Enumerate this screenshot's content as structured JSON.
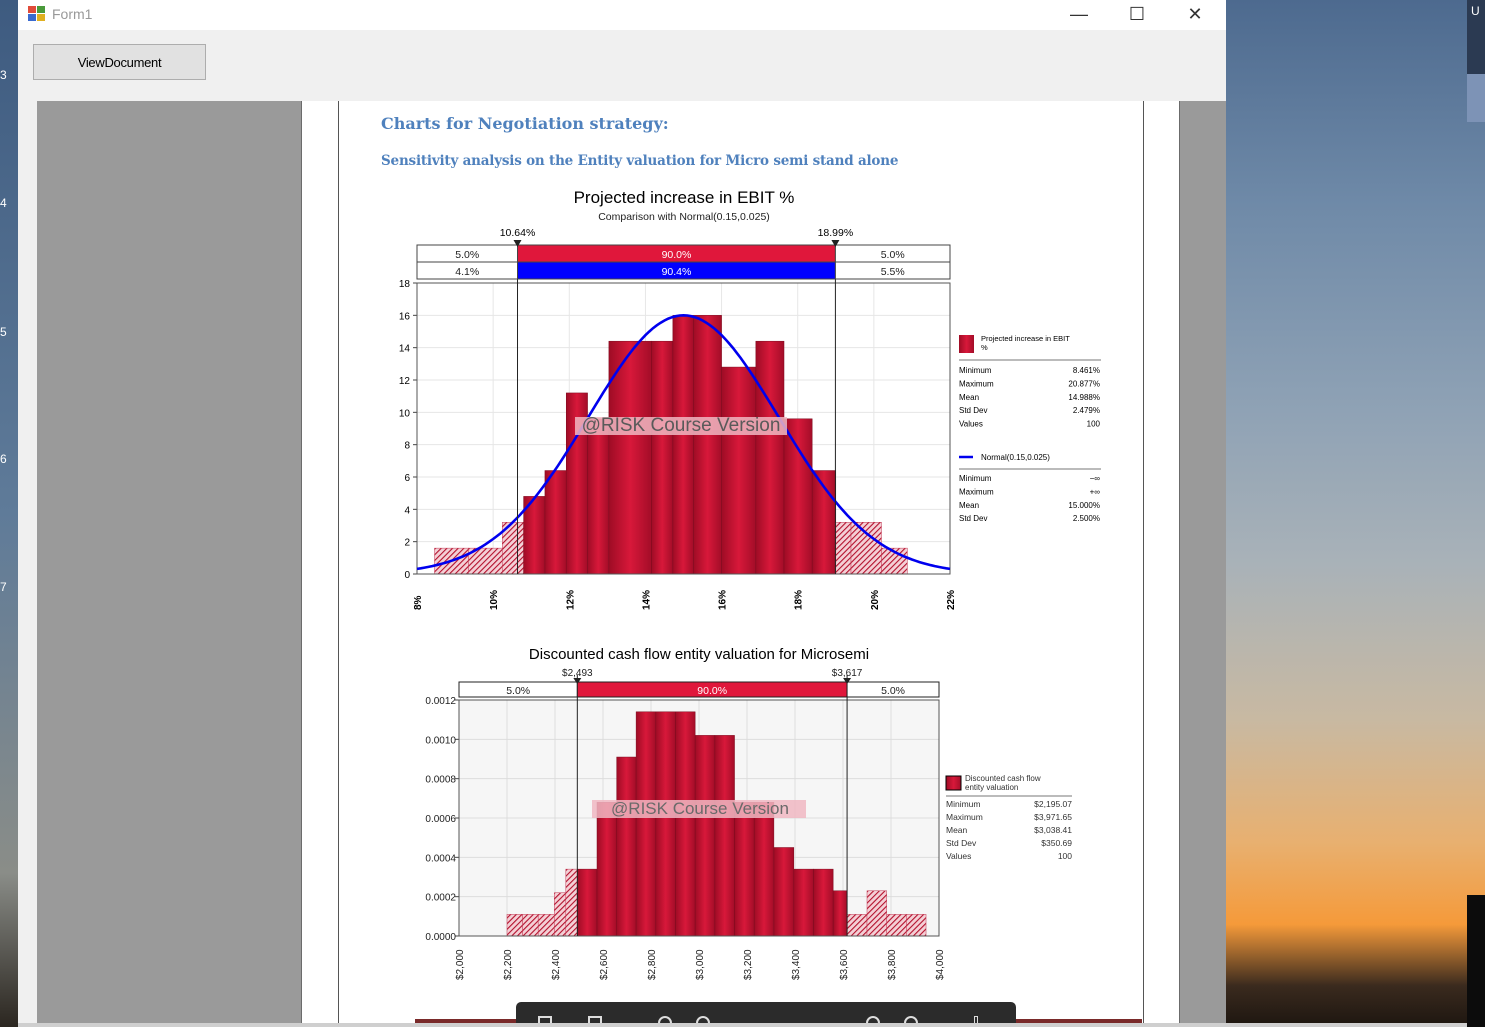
{
  "window": {
    "title": "Form1",
    "minimize_glyph": "—",
    "maximize_glyph": "☐",
    "close_glyph": "✕",
    "app_icon_colors": [
      "#e04b3a",
      "#4a9a3a",
      "#3a6ad0",
      "#e0b020"
    ]
  },
  "toolbar": {
    "view_document_label": "ViewDocument"
  },
  "desktop": {
    "left_strip_glyphs": [
      "3",
      "4",
      "5",
      "6",
      "7"
    ],
    "right_bar_glyph": "U"
  },
  "document": {
    "heading1": "Charts for Negotiation strategy:",
    "heading2": "Sensitivity analysis on the Entity valuation for Micro semi stand alone"
  },
  "chart_data": [
    {
      "type": "bar",
      "title": "Projected increase in EBIT %",
      "subtitle": "Comparison with Normal(0.15,0.025)",
      "watermark": "@RISK Course Version",
      "x_ticks": [
        "8%",
        "10%",
        "12%",
        "14%",
        "16%",
        "18%",
        "20%",
        "22%"
      ],
      "y_ticks": [
        "0",
        "2",
        "4",
        "6",
        "8",
        "10",
        "12",
        "14",
        "16",
        "18"
      ],
      "xlim": [
        8,
        22
      ],
      "ylim": [
        0,
        18
      ],
      "bin_edges": [
        8.46,
        9.35,
        10.24,
        10.8,
        11.36,
        11.92,
        12.48,
        13.04,
        14.16,
        14.72,
        15.26,
        16.0,
        16.9,
        17.64,
        18.38,
        19.0,
        19.4,
        20.2,
        20.88
      ],
      "values": [
        1.6,
        1.6,
        3.2,
        4.8,
        6.4,
        11.2,
        9.6,
        14.4,
        14.4,
        16.0,
        16.0,
        12.8,
        14.4,
        9.6,
        6.4,
        3.2,
        3.2,
        1.6
      ],
      "normal_curve": {
        "mean": 15.0,
        "sd": 2.5,
        "peak": 16.0,
        "color": "#0000ee",
        "legend": "Normal(0.15,0.025)",
        "stats": [
          {
            "label": "Minimum",
            "value": "−∞"
          },
          {
            "label": "Maximum",
            "value": "+∞"
          },
          {
            "label": "Mean",
            "value": "15.000%"
          },
          {
            "label": "Std Dev",
            "value": "2.500%"
          }
        ]
      },
      "markers": [
        {
          "label": "10.64%",
          "x": 10.64
        },
        {
          "label": "18.99%",
          "x": 18.99
        }
      ],
      "band_top": [
        "5.0%",
        "90.0%",
        "5.0%"
      ],
      "band_bottom": [
        "4.1%",
        "90.4%",
        "5.5%"
      ],
      "series": [
        {
          "name": "Projected increase in EBIT %",
          "color": "#c8102e"
        }
      ],
      "stats": [
        {
          "label": "Minimum",
          "value": "8.461%"
        },
        {
          "label": "Maximum",
          "value": "20.877%"
        },
        {
          "label": "Mean",
          "value": "14.988%"
        },
        {
          "label": "Std Dev",
          "value": "2.479%"
        },
        {
          "label": "Values",
          "value": "100"
        }
      ],
      "grid": true,
      "legend": "right"
    },
    {
      "type": "bar",
      "title": "Discounted cash flow entity valuation for Microsemi",
      "watermark": "@RISK Course Version",
      "x_ticks": [
        "$2,000",
        "$2,200",
        "$2,400",
        "$2,600",
        "$2,800",
        "$3,000",
        "$3,200",
        "$3,400",
        "$3,600",
        "$3,800",
        "$4,000"
      ],
      "y_ticks": [
        "0.0000",
        "0.0002",
        "0.0004",
        "0.0006",
        "0.0008",
        "0.0010",
        "0.0012"
      ],
      "xlim": [
        2000,
        4000
      ],
      "ylim": [
        0,
        0.0012
      ],
      "bin_edges": [
        2200,
        2265,
        2330,
        2397,
        2445,
        2493,
        2575,
        2657,
        2738,
        2820,
        2902,
        2984,
        3066,
        3148,
        3230,
        3312,
        3395,
        3477,
        3559,
        3617,
        3700,
        3782,
        3864,
        3946
      ],
      "values": [
        0.00011,
        0.00011,
        0.00011,
        0.00022,
        0.00034,
        0.00034,
        0.00068,
        0.00091,
        0.00114,
        0.00114,
        0.00114,
        0.00102,
        0.00102,
        0.00068,
        0.00068,
        0.00045,
        0.00034,
        0.00034,
        0.00023,
        0.00011,
        0.00023,
        0.00011,
        0.00011
      ],
      "markers": [
        {
          "label": "$2,493",
          "x": 2493
        },
        {
          "label": "$3,617",
          "x": 3617
        }
      ],
      "band_top": [
        "5.0%",
        "90.0%",
        "5.0%"
      ],
      "series": [
        {
          "name": "Discounted cash flow entity valuation",
          "color": "#c8102e"
        }
      ],
      "stats": [
        {
          "label": "Minimum",
          "value": "$2,195.07"
        },
        {
          "label": "Maximum",
          "value": "$3,971.65"
        },
        {
          "label": "Mean",
          "value": "$3,038.41"
        },
        {
          "label": "Std Dev",
          "value": "$350.69"
        },
        {
          "label": "Values",
          "value": "100"
        }
      ],
      "grid": true,
      "legend": "right"
    }
  ]
}
